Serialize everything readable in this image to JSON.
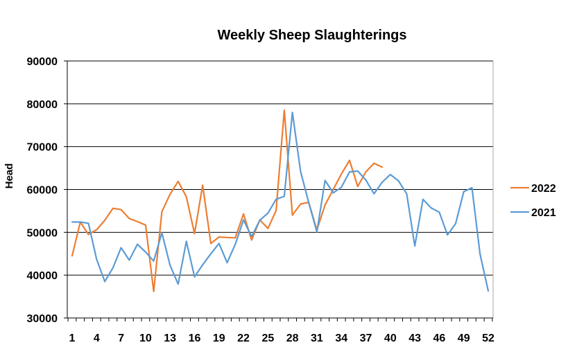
{
  "chart_data": {
    "type": "line",
    "title": "Weekly Sheep Slaughterings",
    "xlabel": "",
    "ylabel": "Head",
    "ylim": [
      30000,
      90000
    ],
    "yticks": [
      30000,
      40000,
      50000,
      60000,
      70000,
      80000,
      90000
    ],
    "ytick_labels": [
      "30000",
      "40000",
      "50000",
      "60000",
      "70000",
      "80000",
      "90000"
    ],
    "xlim": [
      1,
      52
    ],
    "xticks": [
      1,
      4,
      7,
      10,
      13,
      16,
      19,
      22,
      25,
      28,
      31,
      34,
      37,
      40,
      43,
      46,
      49,
      52
    ],
    "xtick_labels": [
      "1",
      "4",
      "7",
      "10",
      "13",
      "16",
      "19",
      "22",
      "25",
      "28",
      "31",
      "34",
      "37",
      "40",
      "43",
      "46",
      "49",
      "52"
    ],
    "grid": "horizontal",
    "legend_position": "right",
    "series": [
      {
        "name": "2022",
        "color": "#ED7D31",
        "x": [
          1,
          2,
          3,
          4,
          5,
          6,
          7,
          8,
          9,
          10,
          11,
          12,
          13,
          14,
          15,
          16,
          17,
          18,
          19,
          20,
          21,
          22,
          23,
          24,
          25,
          26,
          27,
          28,
          29,
          30,
          31,
          32,
          33,
          34,
          35,
          36,
          37,
          38,
          39
        ],
        "values": [
          44500,
          52400,
          49500,
          50600,
          52800,
          55600,
          55300,
          53200,
          52500,
          51700,
          36200,
          54800,
          58900,
          61900,
          58300,
          49700,
          61000,
          47400,
          48900,
          48800,
          48700,
          54300,
          48200,
          52900,
          50900,
          55100,
          78500,
          54000,
          56600,
          57000,
          50500,
          56400,
          60000,
          63600,
          66800,
          60700,
          64100,
          66100,
          65200
        ]
      },
      {
        "name": "2021",
        "color": "#5B9BD5",
        "x": [
          1,
          2,
          3,
          4,
          5,
          6,
          7,
          8,
          9,
          10,
          11,
          12,
          13,
          14,
          15,
          16,
          17,
          18,
          19,
          20,
          21,
          22,
          23,
          24,
          25,
          26,
          27,
          28,
          29,
          30,
          31,
          32,
          33,
          34,
          35,
          36,
          37,
          38,
          39,
          40,
          41,
          42,
          43,
          44,
          45,
          46,
          47,
          48,
          49,
          50,
          51,
          52
        ],
        "values": [
          52400,
          52400,
          52100,
          43700,
          38500,
          41700,
          46400,
          43500,
          47200,
          45400,
          43300,
          49900,
          42300,
          37900,
          47900,
          39600,
          42400,
          45000,
          47400,
          42900,
          47200,
          52900,
          49000,
          52800,
          54500,
          57700,
          58400,
          78000,
          64200,
          56900,
          50100,
          62100,
          59200,
          60500,
          64100,
          64300,
          62200,
          59000,
          61700,
          63500,
          62000,
          59000,
          46800,
          57700,
          55700,
          54700,
          49400,
          52000,
          59500,
          60400,
          44900,
          36300
        ]
      }
    ]
  }
}
